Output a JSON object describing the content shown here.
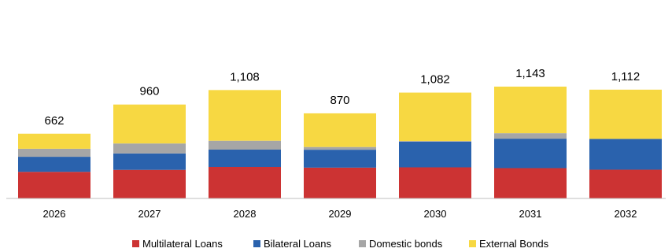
{
  "chart_data": {
    "type": "bar",
    "stacked": true,
    "categories": [
      "2026",
      "2027",
      "2028",
      "2029",
      "2030",
      "2031",
      "2032"
    ],
    "series": [
      {
        "name": "Multilateral Loans",
        "color": "#cc3333",
        "values": [
          272,
          292,
          322,
          315,
          318,
          310,
          294
        ]
      },
      {
        "name": "Bilateral Loans",
        "color": "#2a62ad",
        "values": [
          154,
          168,
          177,
          183,
          262,
          301,
          315
        ]
      },
      {
        "name": "Domestic bonds",
        "color": "#a6a6a6",
        "values": [
          82,
          102,
          91,
          28,
          7,
          56,
          0
        ]
      },
      {
        "name": "External Bonds",
        "color": "#f7d842",
        "values": [
          154,
          398,
          518,
          344,
          495,
          476,
          503
        ]
      }
    ],
    "totals": [
      "662",
      "960",
      "1,108",
      "870",
      "1,082",
      "1,143",
      "1,112"
    ],
    "total_values": [
      662,
      960,
      1108,
      870,
      1082,
      1143,
      1112
    ],
    "ylim": [
      0,
      1300
    ],
    "grid": false,
    "legend_position": "bottom"
  }
}
